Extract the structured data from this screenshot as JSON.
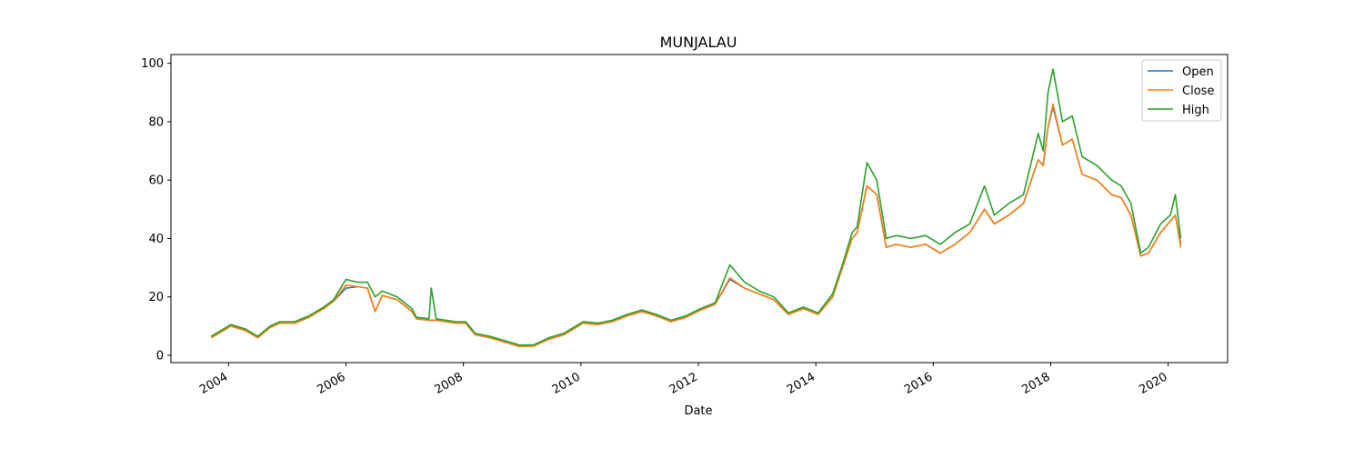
{
  "chart_data": {
    "type": "line",
    "title": "MUNJALAU",
    "xlabel": "Date",
    "ylabel": "",
    "xlim": [
      "2003-01-08",
      "2021-01-05"
    ],
    "ylim": [
      -2.5,
      103
    ],
    "grid": false,
    "legend_position": "top-right",
    "x_ticks": [
      {
        "value": "2004-01-01",
        "label": "2004"
      },
      {
        "value": "2006-01-01",
        "label": "2006"
      },
      {
        "value": "2008-01-01",
        "label": "2008"
      },
      {
        "value": "2010-01-01",
        "label": "2010"
      },
      {
        "value": "2012-01-01",
        "label": "2012"
      },
      {
        "value": "2014-01-01",
        "label": "2014"
      },
      {
        "value": "2016-01-01",
        "label": "2016"
      },
      {
        "value": "2018-01-01",
        "label": "2018"
      },
      {
        "value": "2020-01-01",
        "label": "2020"
      }
    ],
    "y_ticks": [
      {
        "value": 0,
        "label": "0"
      },
      {
        "value": 20,
        "label": "20"
      },
      {
        "value": 40,
        "label": "40"
      },
      {
        "value": 60,
        "label": "60"
      },
      {
        "value": 80,
        "label": "80"
      },
      {
        "value": 100,
        "label": "100"
      }
    ],
    "x": [
      "2003-09-15",
      "2003-11-15",
      "2004-01-15",
      "2004-04-15",
      "2004-07-01",
      "2004-09-15",
      "2004-11-15",
      "2005-02-15",
      "2005-05-15",
      "2005-08-15",
      "2005-10-15",
      "2006-01-01",
      "2006-03-15",
      "2006-05-15",
      "2006-07-01",
      "2006-08-15",
      "2006-11-15",
      "2007-02-15",
      "2007-03-15",
      "2007-06-01",
      "2007-06-15",
      "2007-07-15",
      "2007-11-15",
      "2008-01-15",
      "2008-03-15",
      "2008-06-15",
      "2008-10-15",
      "2008-12-15",
      "2009-03-15",
      "2009-06-15",
      "2009-09-15",
      "2010-01-15",
      "2010-04-15",
      "2010-07-15",
      "2010-10-15",
      "2011-01-15",
      "2011-04-15",
      "2011-07-15",
      "2011-10-15",
      "2012-01-15",
      "2012-04-15",
      "2012-07-15",
      "2012-10-15",
      "2013-01-15",
      "2013-04-15",
      "2013-07-15",
      "2013-10-15",
      "2014-01-15",
      "2014-04-15",
      "2014-06-15",
      "2014-08-15",
      "2014-09-15",
      "2014-11-15",
      "2015-01-15",
      "2015-03-15",
      "2015-05-15",
      "2015-08-15",
      "2015-11-15",
      "2016-02-15",
      "2016-05-15",
      "2016-08-15",
      "2016-11-15",
      "2017-01-15",
      "2017-04-15",
      "2017-07-15",
      "2017-10-15",
      "2017-11-15",
      "2017-12-15",
      "2018-01-15",
      "2018-03-15",
      "2018-05-15",
      "2018-07-15",
      "2018-10-15",
      "2019-01-15",
      "2019-03-15",
      "2019-05-15",
      "2019-07-15",
      "2019-09-01",
      "2019-11-15",
      "2020-01-15",
      "2020-02-15",
      "2020-03-20"
    ],
    "series": [
      {
        "name": "Open",
        "color": "#1f77b4",
        "values": [
          6.0,
          8.0,
          10.0,
          8.5,
          6.0,
          9.5,
          11.0,
          11.0,
          13.0,
          16.0,
          18.5,
          23.0,
          23.5,
          23.0,
          15.0,
          20.5,
          19.0,
          15.0,
          12.5,
          12.0,
          12.0,
          12.0,
          11.0,
          11.0,
          7.0,
          6.0,
          4.0,
          3.0,
          3.2,
          5.5,
          7.0,
          11.0,
          10.5,
          11.5,
          13.5,
          15.0,
          13.5,
          11.5,
          13.0,
          15.5,
          17.5,
          26.0,
          23.0,
          21.0,
          19.0,
          14.0,
          16.0,
          14.0,
          20.0,
          30.0,
          40.0,
          42.0,
          58.0,
          55.0,
          37.0,
          38.0,
          37.0,
          38.0,
          35.0,
          38.0,
          42.0,
          50.0,
          45.0,
          48.0,
          52.0,
          67.0,
          65.0,
          78.0,
          85.0,
          72.0,
          74.0,
          62.0,
          60.0,
          55.0,
          54.0,
          48.0,
          34.0,
          35.0,
          42.0,
          46.0,
          48.0,
          38.0
        ]
      },
      {
        "name": "Close",
        "color": "#ff7f0e",
        "values": [
          6.0,
          8.0,
          10.0,
          8.5,
          6.0,
          9.5,
          11.0,
          11.0,
          13.0,
          16.0,
          18.5,
          24.0,
          23.5,
          23.0,
          15.0,
          20.5,
          19.0,
          15.0,
          12.5,
          12.0,
          12.0,
          12.0,
          11.0,
          11.0,
          7.0,
          6.0,
          4.0,
          3.0,
          3.2,
          5.5,
          7.0,
          11.0,
          10.5,
          11.5,
          13.5,
          15.0,
          13.5,
          11.5,
          13.0,
          15.5,
          17.5,
          26.5,
          23.0,
          21.0,
          19.0,
          14.0,
          16.0,
          14.0,
          20.0,
          30.0,
          40.0,
          42.0,
          58.0,
          55.0,
          37.0,
          38.0,
          37.0,
          38.0,
          35.0,
          38.0,
          42.0,
          50.0,
          45.0,
          48.0,
          52.0,
          67.0,
          65.0,
          78.0,
          86.0,
          72.0,
          74.0,
          62.0,
          60.0,
          55.0,
          54.0,
          48.0,
          34.0,
          35.0,
          42.0,
          46.0,
          48.0,
          37.0
        ]
      },
      {
        "name": "High",
        "color": "#2ca02c",
        "values": [
          6.5,
          8.5,
          10.5,
          9.0,
          6.5,
          10.0,
          11.5,
          11.5,
          13.5,
          16.5,
          19.0,
          26.0,
          25.0,
          25.0,
          20.0,
          22.0,
          20.0,
          16.0,
          13.0,
          12.5,
          23.0,
          12.5,
          11.5,
          11.5,
          7.5,
          6.5,
          4.5,
          3.5,
          3.6,
          6.0,
          7.5,
          11.5,
          11.0,
          12.0,
          14.0,
          15.5,
          14.0,
          12.0,
          13.5,
          16.0,
          18.0,
          31.0,
          25.0,
          22.0,
          20.0,
          14.5,
          16.5,
          14.5,
          21.0,
          31.0,
          42.0,
          44.0,
          66.0,
          60.0,
          40.0,
          41.0,
          40.0,
          41.0,
          38.0,
          42.0,
          45.0,
          58.0,
          48.0,
          52.0,
          55.0,
          76.0,
          70.0,
          90.0,
          98.0,
          80.0,
          82.0,
          68.0,
          65.0,
          60.0,
          58.0,
          52.0,
          35.0,
          37.0,
          45.0,
          48.0,
          55.0,
          40.0
        ]
      }
    ]
  }
}
